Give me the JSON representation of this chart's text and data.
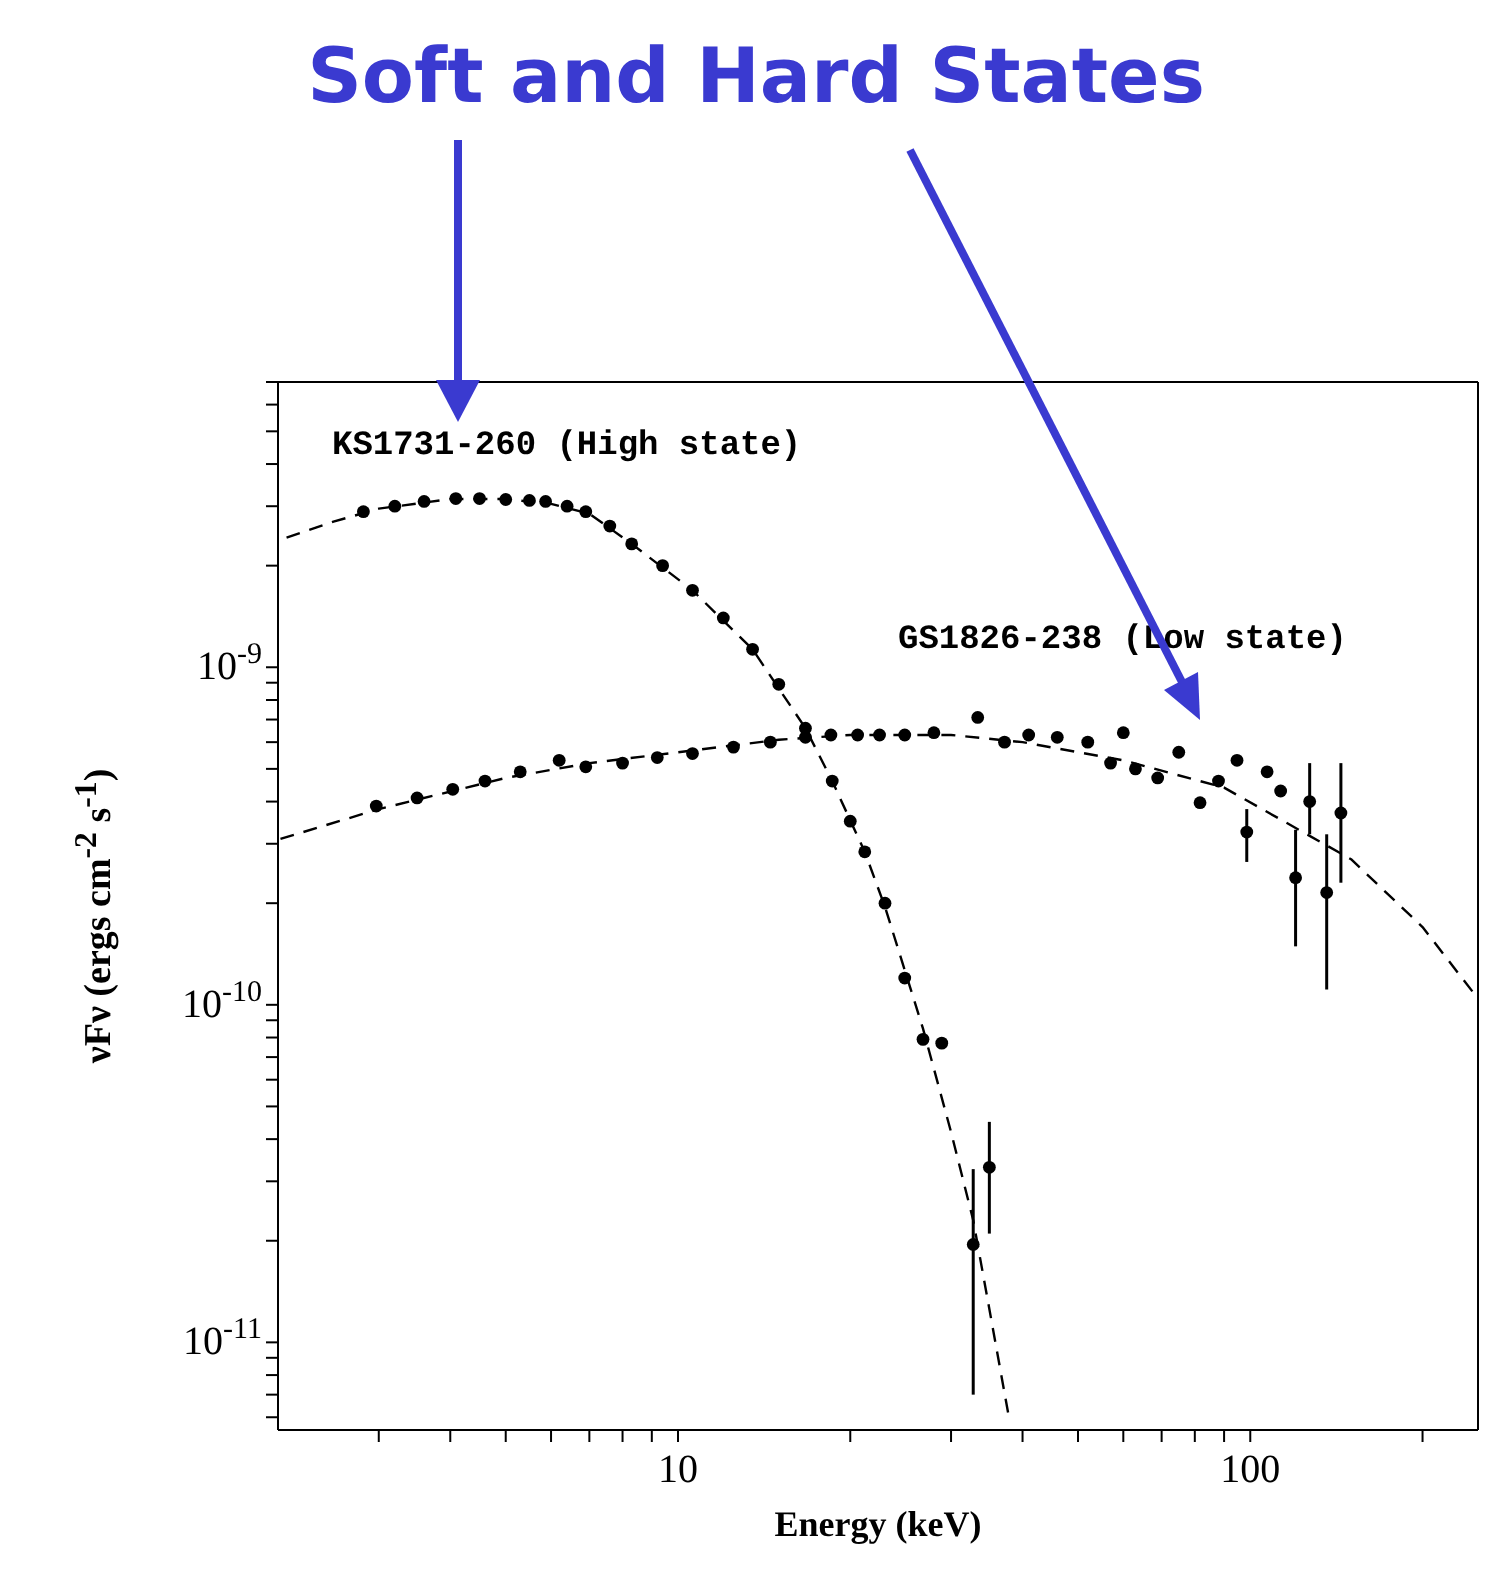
{
  "chart_data": {
    "type": "scatter",
    "title": "Soft and Hard States",
    "xlabel": "Energy (keV)",
    "ylabel": "νFν (ergs cm$^{-2}$ s$^{-1}$)",
    "log": "xy",
    "marker": "circle",
    "xlim": [
      2,
      250
    ],
    "ylim": [
      5.5e-12,
      7e-09
    ],
    "xticks": [
      {
        "value": 3,
        "label": null
      },
      {
        "value": 4,
        "label": null
      },
      {
        "value": 5,
        "label": null
      },
      {
        "value": 6,
        "label": null
      },
      {
        "value": 7,
        "label": null
      },
      {
        "value": 8,
        "label": null
      },
      {
        "value": 9,
        "label": null
      },
      10,
      {
        "value": 20,
        "label": null
      },
      {
        "value": 30,
        "label": null
      },
      {
        "value": 40,
        "label": null
      },
      {
        "value": 50,
        "label": null
      },
      {
        "value": 60,
        "label": null
      },
      {
        "value": 70,
        "label": null
      },
      {
        "value": 80,
        "label": null
      },
      {
        "value": 90,
        "label": null
      },
      100,
      {
        "value": 200,
        "label": null
      }
    ],
    "yticks": [
      {
        "value": 6e-12,
        "label": null
      },
      {
        "value": 7e-12,
        "label": null
      },
      {
        "value": 8e-12,
        "label": null
      },
      {
        "value": 9e-12,
        "label": null
      },
      {
        "value": 1e-11,
        "label": "10$^{-11}$"
      },
      {
        "value": 2e-11,
        "label": null
      },
      {
        "value": 3e-11,
        "label": null
      },
      {
        "value": 4e-11,
        "label": null
      },
      {
        "value": 5e-11,
        "label": null
      },
      {
        "value": 6e-11,
        "label": null
      },
      {
        "value": 7e-11,
        "label": null
      },
      {
        "value": 8e-11,
        "label": null
      },
      {
        "value": 9e-11,
        "label": null
      },
      {
        "value": 1e-10,
        "label": "10$^{-10}$"
      },
      {
        "value": 2e-10,
        "label": null
      },
      {
        "value": 3e-10,
        "label": null
      },
      {
        "value": 4e-10,
        "label": null
      },
      {
        "value": 5e-10,
        "label": null
      },
      {
        "value": 6e-10,
        "label": null
      },
      {
        "value": 7e-10,
        "label": null
      },
      {
        "value": 8e-10,
        "label": null
      },
      {
        "value": 9e-10,
        "label": null
      },
      {
        "value": 1e-09,
        "label": "10$^{-9}$"
      },
      {
        "value": 2e-09,
        "label": null
      },
      {
        "value": 3e-09,
        "label": null
      },
      {
        "value": 4e-09,
        "label": null
      },
      {
        "value": 5e-09,
        "label": null
      },
      {
        "value": 6e-09,
        "label": null
      },
      {
        "value": 7e-09,
        "label": null
      }
    ],
    "series": [
      {
        "name": "KS1731-260 (High state)",
        "color": "#000000",
        "x": [
          2.82,
          3.2,
          3.6,
          4.09,
          4.5,
          5.0,
          5.5,
          5.87,
          6.4,
          6.9,
          7.6,
          8.3,
          9.4,
          10.6,
          12,
          13.5,
          15,
          16.7,
          18.6,
          20,
          21.2,
          23,
          24.9,
          26.8,
          28.9,
          32.8,
          35
        ],
        "values": [
          2.89e-09,
          3e-09,
          3.1e-09,
          3.16e-09,
          3.16e-09,
          3.14e-09,
          3.12e-09,
          3.1e-09,
          3e-09,
          2.89e-09,
          2.62e-09,
          2.32e-09,
          2e-09,
          1.69e-09,
          1.4e-09,
          1.13e-09,
          8.9e-10,
          6.6e-10,
          4.6e-10,
          3.5e-10,
          2.84e-10,
          2e-10,
          1.2e-10,
          7.9e-11,
          7.7e-11,
          1.95e-11,
          3.3e-11
        ],
        "errors": [
          null,
          null,
          null,
          null,
          null,
          null,
          null,
          null,
          null,
          null,
          null,
          null,
          null,
          null,
          null,
          null,
          null,
          null,
          null,
          null,
          null,
          null,
          null,
          null,
          null,
          [
            7e-12,
            3.26e-11
          ],
          [
            2.1e-11,
            4.5e-11
          ]
        ]
      },
      {
        "name": "GS1826-238 (Low state)",
        "color": "#000000",
        "x": [
          2.97,
          3.5,
          4.04,
          4.6,
          5.3,
          6.2,
          6.9,
          8,
          9.2,
          10.6,
          12.5,
          14.5,
          16.7,
          18.5,
          20.6,
          22.5,
          24.9,
          28,
          33.4,
          37.2,
          41,
          46,
          52,
          57,
          60,
          63,
          68.9,
          75,
          81.7,
          88,
          94.8,
          98.6,
          107,
          113,
          120,
          127,
          136,
          144
        ],
        "values": [
          3.88e-10,
          4.1e-10,
          4.35e-10,
          4.6e-10,
          4.9e-10,
          5.3e-10,
          5.07e-10,
          5.2e-10,
          5.4e-10,
          5.55e-10,
          5.8e-10,
          6e-10,
          6.2e-10,
          6.3e-10,
          6.3e-10,
          6.3e-10,
          6.3e-10,
          6.4e-10,
          7.1e-10,
          6e-10,
          6.3e-10,
          6.2e-10,
          6e-10,
          5.2e-10,
          6.4e-10,
          5e-10,
          4.7e-10,
          5.6e-10,
          3.97e-10,
          4.6e-10,
          5.3e-10,
          3.25e-10,
          4.9e-10,
          4.3e-10,
          2.38e-10,
          4e-10,
          2.15e-10,
          3.7e-10
        ],
        "errors": [
          null,
          null,
          null,
          null,
          null,
          null,
          null,
          null,
          null,
          null,
          null,
          null,
          null,
          null,
          null,
          null,
          null,
          null,
          null,
          null,
          null,
          null,
          null,
          null,
          null,
          null,
          null,
          null,
          null,
          null,
          null,
          [
            2.65e-10,
            3.8e-10
          ],
          null,
          null,
          [
            1.49e-10,
            3.3e-10
          ],
          [
            3.2e-10,
            5.2e-10
          ],
          [
            1.11e-10,
            3.2e-10
          ],
          [
            2.3e-10,
            5.2e-10
          ]
        ]
      },
      {
        "type": "line",
        "color": "#000000",
        "line_style": "dashed",
        "marker": "none",
        "x": [
          2.07,
          2.5,
          3,
          4,
          5,
          6,
          7,
          8.3,
          10.6,
          13.5,
          16.7,
          18.6,
          21.2,
          23,
          26.8,
          30,
          32.8,
          35.2,
          38
        ],
        "values": [
          2.42e-09,
          2.7e-09,
          2.95e-09,
          3.15e-09,
          3.15e-09,
          3.05e-09,
          2.85e-09,
          2.32e-09,
          1.69e-09,
          1.13e-09,
          6.6e-10,
          4.6e-10,
          2.84e-10,
          1.95e-10,
          8.5e-11,
          4.2e-11,
          2.3e-11,
          1.19e-11,
          5.8e-12
        ]
      },
      {
        "type": "line",
        "color": "#000000",
        "line_style": "dashed",
        "marker": "none",
        "x": [
          2.02,
          3,
          5,
          7,
          10,
          15,
          20,
          30,
          40,
          60,
          90,
          150,
          200,
          245
        ],
        "values": [
          3.1e-10,
          3.8e-10,
          4.7e-10,
          5.2e-10,
          5.6e-10,
          6.1e-10,
          6.3e-10,
          6.3e-10,
          6e-10,
          5.3e-10,
          4.4e-10,
          2.7e-10,
          1.7e-10,
          1.09e-10
        ]
      }
    ]
  }
}
